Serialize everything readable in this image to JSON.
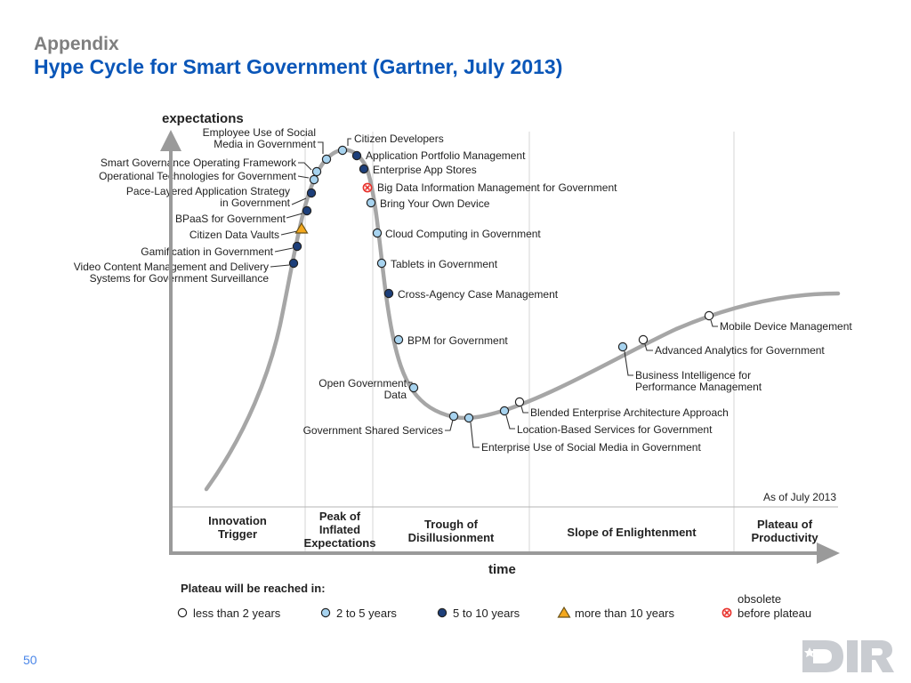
{
  "slide": {
    "subtitle": "Appendix",
    "title": "Hype Cycle for Smart Government (Gartner, July 2013)",
    "page_number": "50",
    "logo_text": "DIR"
  },
  "chart": {
    "y_axis_label": "expectations",
    "x_axis_label": "time",
    "as_of": "As of July 2013",
    "phases": [
      {
        "lines": [
          "Innovation",
          "Trigger"
        ]
      },
      {
        "lines": [
          "Peak of",
          "Inflated",
          "Expectations"
        ]
      },
      {
        "lines": [
          "Trough of",
          "Disillusionment"
        ]
      },
      {
        "lines": [
          "Slope of Enlightenment"
        ]
      },
      {
        "lines": [
          "Plateau of",
          "Productivity"
        ]
      }
    ],
    "legend": {
      "title": "Plateau will be reached in:",
      "items": [
        {
          "label": "less than 2 years",
          "symbol": "white",
          "lines": [
            "less than 2 years"
          ]
        },
        {
          "label": "2 to 5 years",
          "symbol": "light",
          "lines": [
            "2 to 5 years"
          ]
        },
        {
          "label": "5 to 10 years",
          "symbol": "dark",
          "lines": [
            "5 to 10 years"
          ]
        },
        {
          "label": "more than 10 years",
          "symbol": "triangle",
          "lines": [
            "more than 10 years"
          ]
        },
        {
          "label": "obsolete before plateau",
          "symbol": "obsolete",
          "lines": [
            "obsolete",
            "before plateau"
          ]
        }
      ]
    },
    "colors": {
      "curve": "#a6a6a6",
      "white": "#ffffff",
      "light": "#a7d3ef",
      "dark": "#1d3f7a",
      "triangle": "#f4a81d",
      "obsolete": "#e8302a",
      "text": "#222222"
    },
    "technologies": [
      {
        "name": "Employee Use of Social Media in Government",
        "lines": [
          "Employee Use of Social",
          "Media in Government"
        ],
        "years": "2 to 5 years"
      },
      {
        "name": "Citizen Developers",
        "lines": [
          "Citizen Developers"
        ],
        "years": "2 to 5 years"
      },
      {
        "name": "Application Portfolio Management",
        "lines": [
          "Application Portfolio Management"
        ],
        "years": "5 to 10 years"
      },
      {
        "name": "Enterprise App Stores",
        "lines": [
          "Enterprise App Stores"
        ],
        "years": "5 to 10 years"
      },
      {
        "name": "Big Data Information Management for Government",
        "lines": [
          "Big Data Information Management for Government"
        ],
        "years": "obsolete before plateau"
      },
      {
        "name": "Bring Your Own Device",
        "lines": [
          "Bring Your Own Device"
        ],
        "years": "2 to 5 years"
      },
      {
        "name": "Smart Governance Operating Framework",
        "lines": [
          "Smart Governance Operating Framework"
        ],
        "years": "2 to 5 years"
      },
      {
        "name": "Operational Technologies for Government",
        "lines": [
          "Operational Technologies for Government"
        ],
        "years": "2 to 5 years"
      },
      {
        "name": "Pace-Layered Application Strategy in Government",
        "lines": [
          "Pace-Layered Application Strategy",
          "in Government"
        ],
        "years": "5 to 10 years"
      },
      {
        "name": "BPaaS for Government",
        "lines": [
          "BPaaS for Government"
        ],
        "years": "5 to 10 years"
      },
      {
        "name": "Citizen Data Vaults",
        "lines": [
          "Citizen Data Vaults"
        ],
        "years": "more than 10 years"
      },
      {
        "name": "Gamification in Government",
        "lines": [
          "Gamification in Government"
        ],
        "years": "5 to 10 years"
      },
      {
        "name": "Video Content Management and Delivery Systems for Government Surveillance",
        "lines": [
          "Video Content Management and Delivery",
          "Systems for Government Surveillance"
        ],
        "years": "5 to 10 years"
      },
      {
        "name": "Cloud Computing in Government",
        "lines": [
          "Cloud Computing in Government"
        ],
        "years": "2 to 5 years"
      },
      {
        "name": "Tablets in Government",
        "lines": [
          "Tablets in Government"
        ],
        "years": "2 to 5 years"
      },
      {
        "name": "Cross-Agency Case Management",
        "lines": [
          "Cross-Agency Case Management"
        ],
        "years": "5 to 10 years"
      },
      {
        "name": "BPM for Government",
        "lines": [
          "BPM for Government"
        ],
        "years": "2 to 5 years"
      },
      {
        "name": "Open Government Data",
        "lines": [
          "Open Government",
          "Data"
        ],
        "years": "2 to 5 years"
      },
      {
        "name": "Government Shared Services",
        "lines": [
          "Government Shared Services"
        ],
        "years": "2 to 5 years"
      },
      {
        "name": "Enterprise Use of Social Media in Government",
        "lines": [
          "Enterprise Use of Social Media in Government"
        ],
        "years": "2 to 5 years"
      },
      {
        "name": "Location-Based Services for Government",
        "lines": [
          "Location-Based Services for Government"
        ],
        "years": "2 to 5 years"
      },
      {
        "name": "Blended Enterprise Architecture Approach",
        "lines": [
          "Blended Enterprise Architecture Approach"
        ],
        "years": "less than 2 years"
      },
      {
        "name": "Business Intelligence for Performance Management",
        "lines": [
          "Business Intelligence for",
          "Performance Management"
        ],
        "years": "2 to 5 years"
      },
      {
        "name": "Advanced Analytics for Government",
        "lines": [
          "Advanced Analytics for Government"
        ],
        "years": "less than 2 years"
      },
      {
        "name": "Mobile Device Management",
        "lines": [
          "Mobile Device Management"
        ],
        "years": "less than 2 years"
      }
    ]
  }
}
